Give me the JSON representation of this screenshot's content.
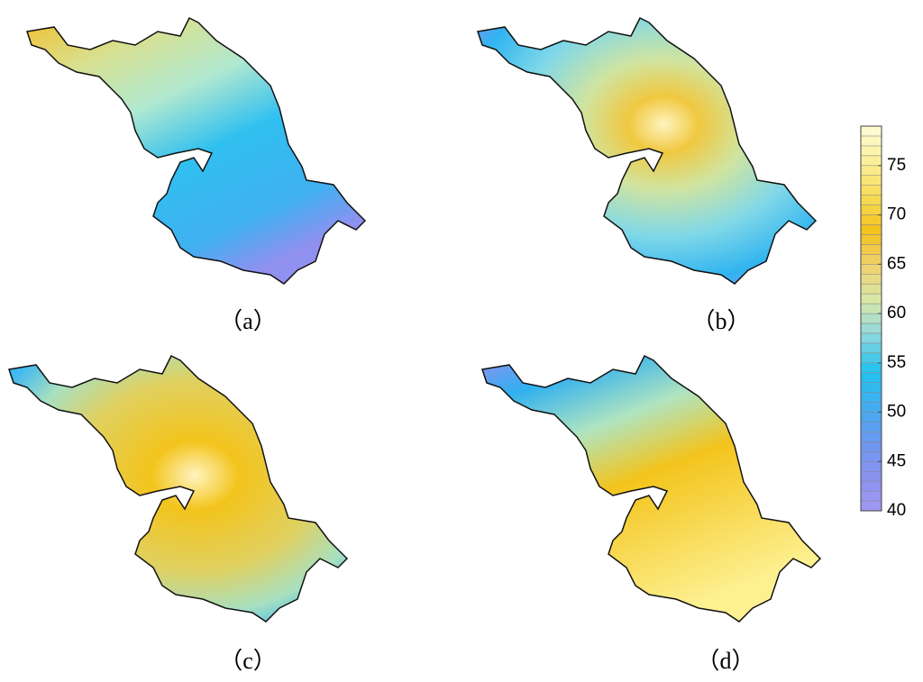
{
  "panels": [
    {
      "label": "（a）"
    },
    {
      "label": "（b）"
    },
    {
      "label": "（c）"
    },
    {
      "label": "（d）"
    }
  ],
  "colorbar": {
    "range": [
      40,
      79
    ],
    "ticks": [
      40,
      45,
      50,
      55,
      60,
      65,
      70,
      75
    ],
    "colors": [
      "#a09af2",
      "#8a92f0",
      "#6a98f0",
      "#40aef0",
      "#22c2ef",
      "#8ad8e0",
      "#d8e8a8",
      "#eed270",
      "#f3c21c",
      "#f6dc58",
      "#fbef9a",
      "#fffcd8"
    ]
  }
}
